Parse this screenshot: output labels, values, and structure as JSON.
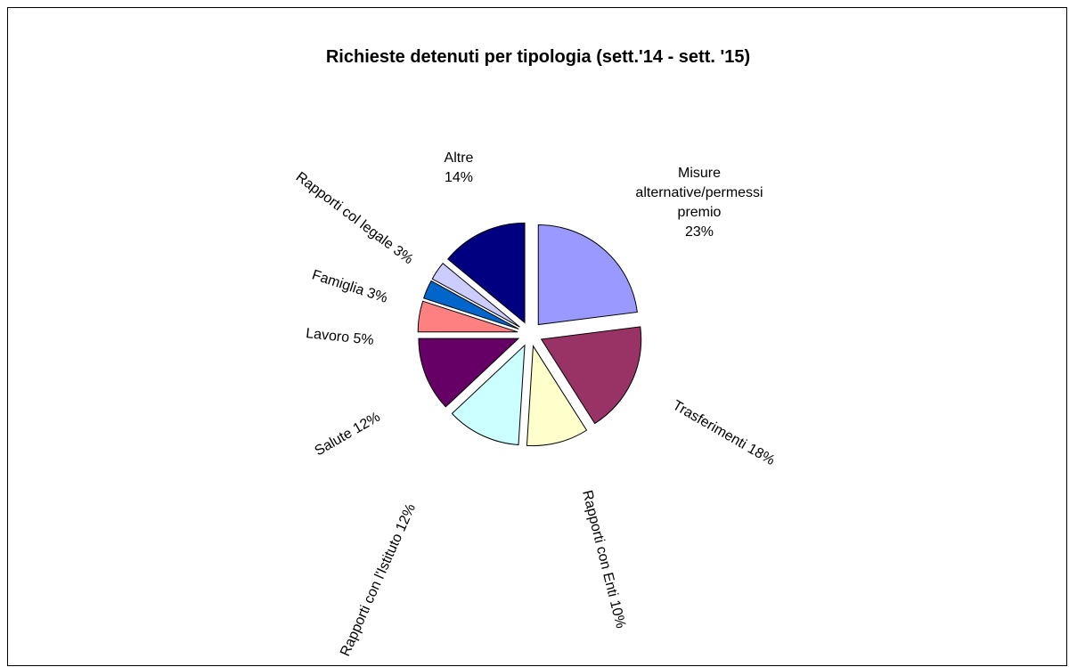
{
  "chart_data": {
    "type": "pie",
    "title": "Richieste detenuti per tipologia (sett.'14 - sett. '15)",
    "exploded": true,
    "slices": [
      {
        "label": "Misure alternative/permessi premio",
        "value": 23,
        "color": "#9999FF",
        "label_lines": [
          "Misure",
          "alternative/permessi",
          "premio",
          "23%"
        ]
      },
      {
        "label": "Trasferimenti",
        "value": 18,
        "color": "#993366",
        "label_lines": [
          "Trasferimenti 18%"
        ]
      },
      {
        "label": "Rapporti con Enti",
        "value": 10,
        "color": "#FFFFCC",
        "label_lines": [
          "Rapporti con Enti 10%"
        ]
      },
      {
        "label": "Rapporti con l'Istituto",
        "value": 12,
        "color": "#CCFFFF",
        "label_lines": [
          "Rapporti con l'Istituto 12%"
        ]
      },
      {
        "label": "Salute",
        "value": 12,
        "color": "#660066",
        "label_lines": [
          "Salute 12%"
        ]
      },
      {
        "label": "Lavoro",
        "value": 5,
        "color": "#FF8080",
        "label_lines": [
          "Lavoro 5%"
        ]
      },
      {
        "label": "Famiglia",
        "value": 3,
        "color": "#0066CC",
        "label_lines": [
          "Famiglia 3%"
        ]
      },
      {
        "label": "Rapporti col legale",
        "value": 3,
        "color": "#CCCCFF",
        "label_lines": [
          "Rapporti col legale 3%"
        ]
      },
      {
        "label": "Altre",
        "value": 14,
        "color": "#000080",
        "label_lines": [
          "Altre",
          "14%"
        ]
      }
    ]
  }
}
